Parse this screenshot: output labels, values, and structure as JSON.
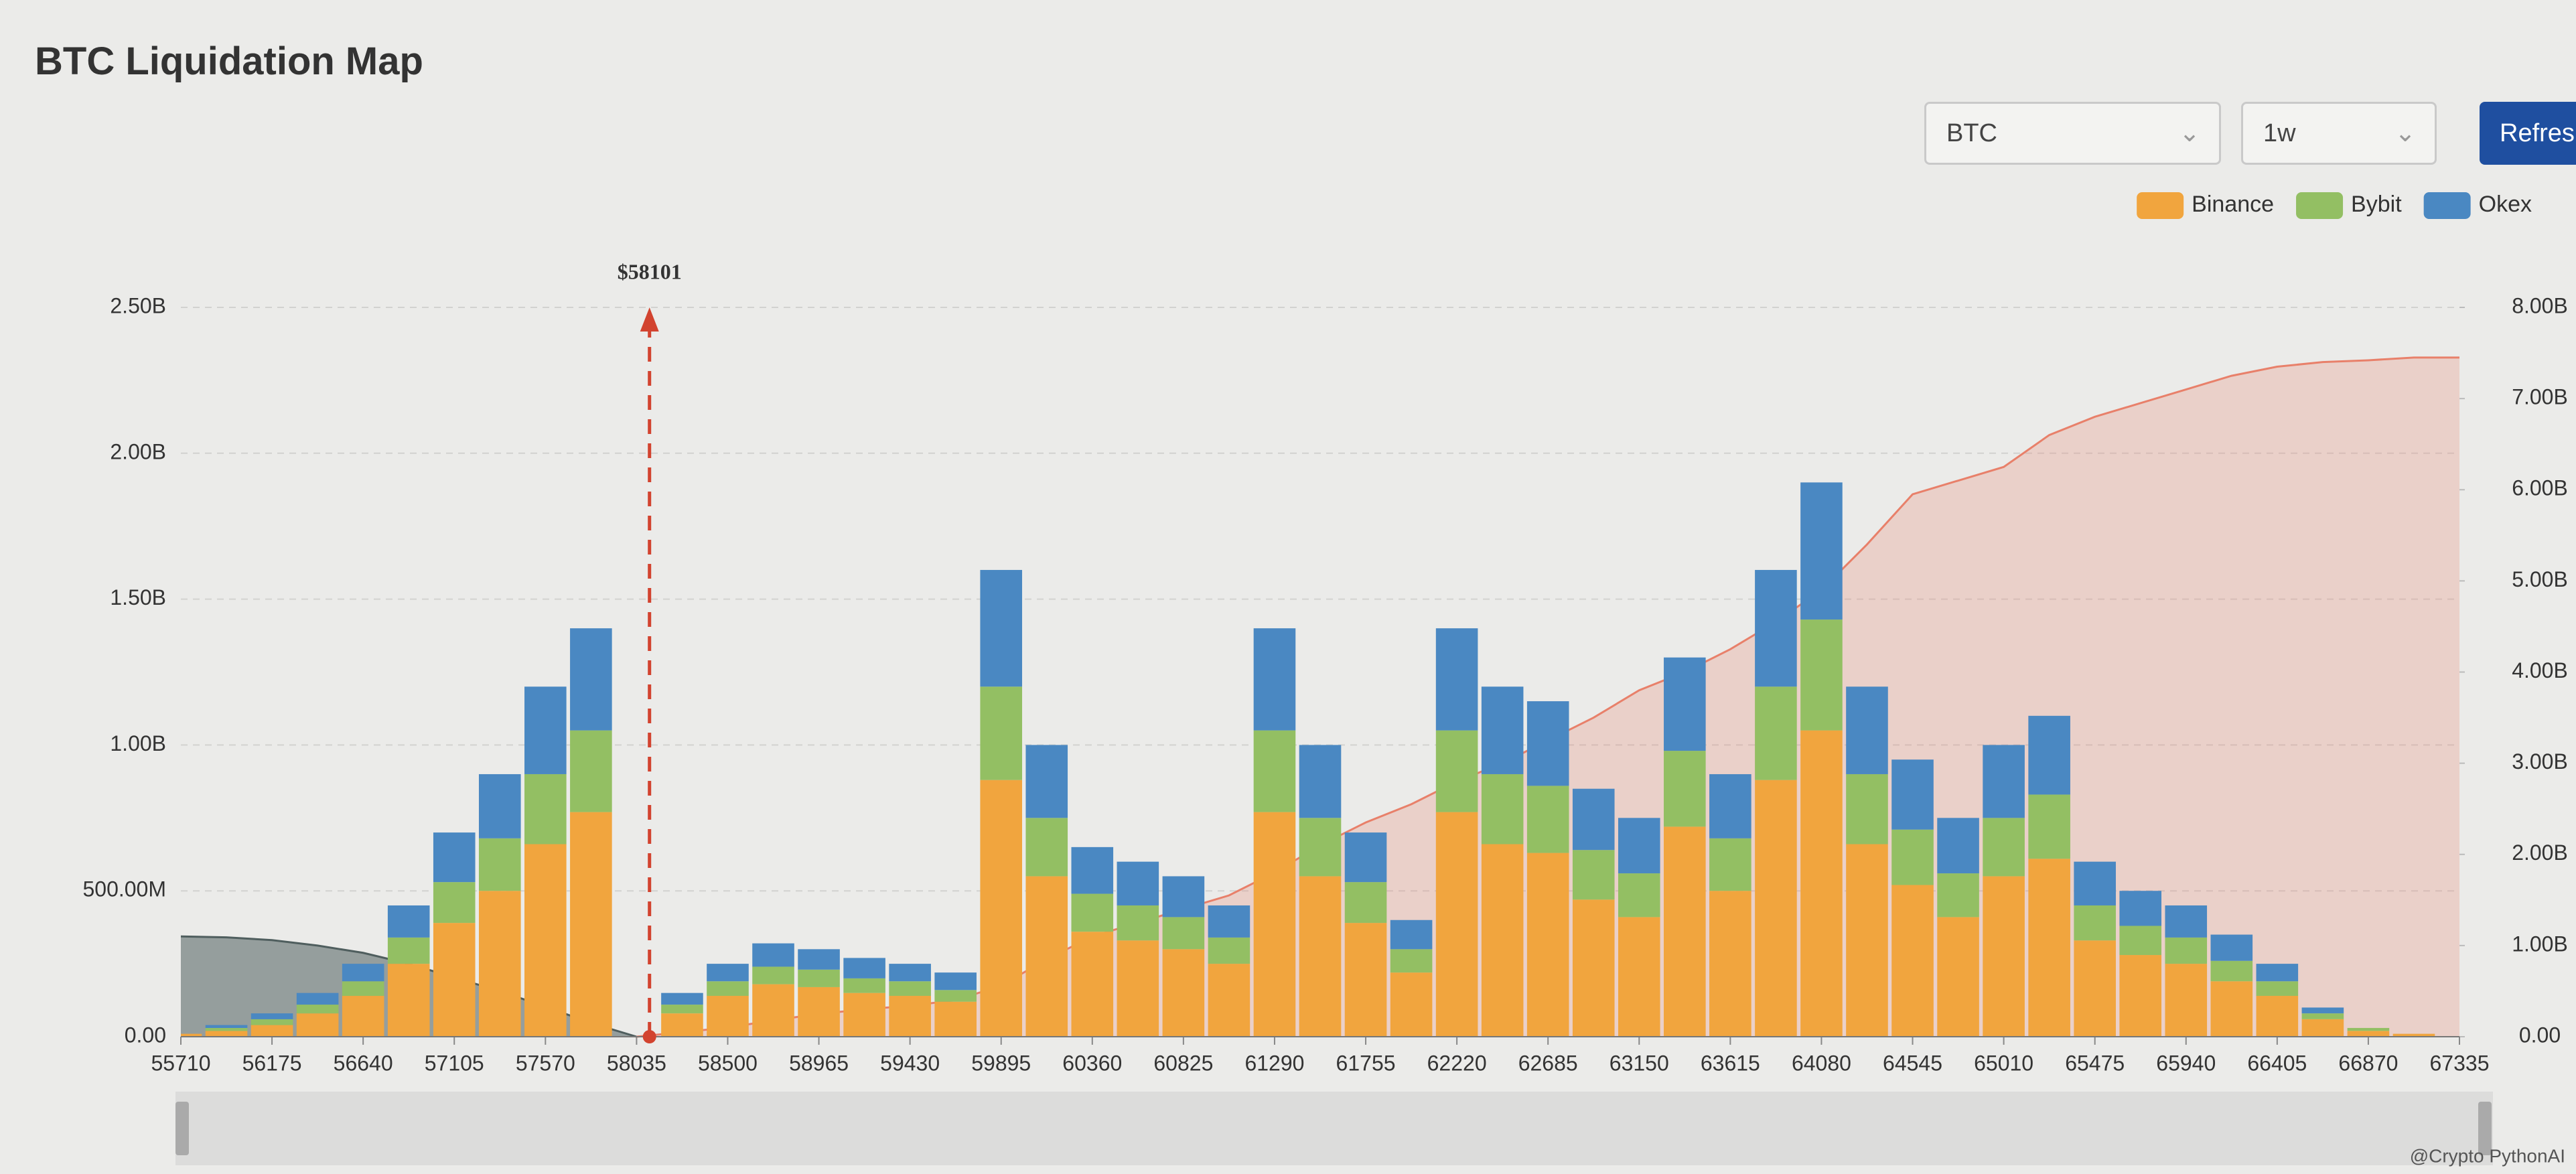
{
  "header": {
    "title": "BTC Liquidation Map",
    "symbol": "BTC",
    "period": "1w",
    "button": "Refres"
  },
  "watermark": "@Crypto PythonAI",
  "chart_data": {
    "type": "bar",
    "stacked": true,
    "x": [
      55710,
      55942.5,
      56175,
      56407.5,
      56640,
      56872.5,
      57105,
      57337.5,
      57570,
      57802.5,
      58035,
      58267.5,
      58500,
      58732.5,
      58965,
      59197.5,
      59430,
      59662.5,
      59895,
      60127.5,
      60360,
      60592.5,
      60825,
      61057.5,
      61290,
      61522.5,
      61755,
      61987.5,
      62220,
      62452.5,
      62685,
      62917.5,
      63150,
      63382.5,
      63615,
      63847.5,
      64080,
      64312.5,
      64545,
      64777.5,
      65010,
      65242.5,
      65475,
      65707.5,
      65940,
      66172.5,
      66405,
      66637.5,
      66870,
      67102.5,
      67335
    ],
    "series": [
      {
        "name": "Binance",
        "color": "#f1a53e",
        "values": [
          0.01,
          0.02,
          0.04,
          0.08,
          0.14,
          0.25,
          0.39,
          0.5,
          0.66,
          0.77,
          0,
          0.08,
          0.14,
          0.18,
          0.17,
          0.15,
          0.14,
          0.12,
          0.88,
          0.55,
          0.36,
          0.33,
          0.3,
          0.25,
          0.77,
          0.55,
          0.39,
          0.22,
          0.77,
          0.66,
          0.63,
          0.47,
          0.41,
          0.72,
          0.5,
          0.88,
          1.05,
          0.66,
          0.52,
          0.41,
          0.55,
          0.61,
          0.33,
          0.28,
          0.25,
          0.19,
          0.14,
          0.06,
          0.02,
          0.01,
          0
        ]
      },
      {
        "name": "Bybit",
        "color": "#93bf63",
        "values": [
          0,
          0.01,
          0.02,
          0.03,
          0.05,
          0.09,
          0.14,
          0.18,
          0.24,
          0.28,
          0,
          0.03,
          0.05,
          0.06,
          0.06,
          0.05,
          0.05,
          0.04,
          0.32,
          0.2,
          0.13,
          0.12,
          0.11,
          0.09,
          0.28,
          0.2,
          0.14,
          0.08,
          0.28,
          0.24,
          0.23,
          0.17,
          0.15,
          0.26,
          0.18,
          0.32,
          0.38,
          0.24,
          0.19,
          0.15,
          0.2,
          0.22,
          0.12,
          0.1,
          0.09,
          0.07,
          0.05,
          0.02,
          0.01,
          0,
          0
        ]
      },
      {
        "name": "Okex",
        "color": "#4a88c2",
        "values": [
          0,
          0.01,
          0.02,
          0.04,
          0.06,
          0.11,
          0.17,
          0.22,
          0.3,
          0.35,
          0,
          0.04,
          0.06,
          0.08,
          0.07,
          0.07,
          0.06,
          0.06,
          0.4,
          0.25,
          0.16,
          0.15,
          0.14,
          0.11,
          0.35,
          0.25,
          0.17,
          0.1,
          0.35,
          0.3,
          0.29,
          0.21,
          0.19,
          0.32,
          0.22,
          0.4,
          0.47,
          0.3,
          0.24,
          0.19,
          0.25,
          0.27,
          0.15,
          0.12,
          0.11,
          0.09,
          0.06,
          0.02,
          0,
          0,
          0
        ]
      }
    ],
    "areas": [
      {
        "axis": "y2",
        "color": "#4f5e5e",
        "x": [
          55710,
          55942.5,
          56175,
          56407.5,
          56640,
          56872.5,
          57105,
          57337.5,
          57570,
          57802.5,
          58035
        ],
        "values": [
          1.1,
          1.09,
          1.06,
          1.0,
          0.92,
          0.8,
          0.65,
          0.5,
          0.33,
          0.15,
          0
        ]
      },
      {
        "axis": "y2",
        "color": "#e8806a",
        "x": [
          58035,
          58267.5,
          58500,
          58732.5,
          58965,
          59197.5,
          59430,
          59662.5,
          59895,
          60127.5,
          60360,
          60592.5,
          60825,
          61057.5,
          61290,
          61522.5,
          61755,
          61987.5,
          62220,
          62452.5,
          62685,
          62917.5,
          63150,
          63382.5,
          63615,
          63847.5,
          64080,
          64312.5,
          64545,
          64777.5,
          65010,
          65242.5,
          65475,
          65707.5,
          65940,
          66172.5,
          66405,
          66637.5,
          66870,
          67102.5,
          67335
        ],
        "values": [
          0,
          0.05,
          0.1,
          0.18,
          0.25,
          0.3,
          0.34,
          0.4,
          0.56,
          0.85,
          1.1,
          1.25,
          1.4,
          1.55,
          1.8,
          2.1,
          2.35,
          2.55,
          2.8,
          3.0,
          3.25,
          3.5,
          3.8,
          4.0,
          4.25,
          4.55,
          4.9,
          5.4,
          5.95,
          6.1,
          6.25,
          6.6,
          6.8,
          6.95,
          7.1,
          7.25,
          7.35,
          7.4,
          7.42,
          7.45,
          7.45
        ]
      }
    ],
    "marker": {
      "value": 58101,
      "label": "$58101"
    },
    "xlim": [
      55710,
      67335
    ],
    "xticks": [
      55710,
      56175,
      56640,
      57105,
      57570,
      58035,
      58500,
      58965,
      59430,
      59895,
      60360,
      60825,
      61290,
      61755,
      62220,
      62685,
      63150,
      63615,
      64080,
      64545,
      65010,
      65475,
      65940,
      66405,
      66870,
      67335
    ],
    "ylim": [
      0,
      2.5
    ],
    "yticks": [
      {
        "value": 0,
        "label": "0.00"
      },
      {
        "value": 0.5,
        "label": "500.00M"
      },
      {
        "value": 1,
        "label": "1.00B"
      },
      {
        "value": 1.5,
        "label": "1.50B"
      },
      {
        "value": 2,
        "label": "2.00B"
      },
      {
        "value": 2.5,
        "label": "2.50B"
      }
    ],
    "y2lim": [
      0,
      8
    ],
    "y2ticks": [
      {
        "value": 0,
        "label": "0.00"
      },
      {
        "value": 1,
        "label": "1.00B"
      },
      {
        "value": 2,
        "label": "2.00B"
      },
      {
        "value": 3,
        "label": "3.00B"
      },
      {
        "value": 4,
        "label": "4.00B"
      },
      {
        "value": 5,
        "label": "5.00B"
      },
      {
        "value": 6,
        "label": "6.00B"
      },
      {
        "value": 7,
        "label": "7.00B"
      },
      {
        "value": 8,
        "label": "8.00B"
      }
    ],
    "grid": true,
    "legend": "top-right"
  }
}
